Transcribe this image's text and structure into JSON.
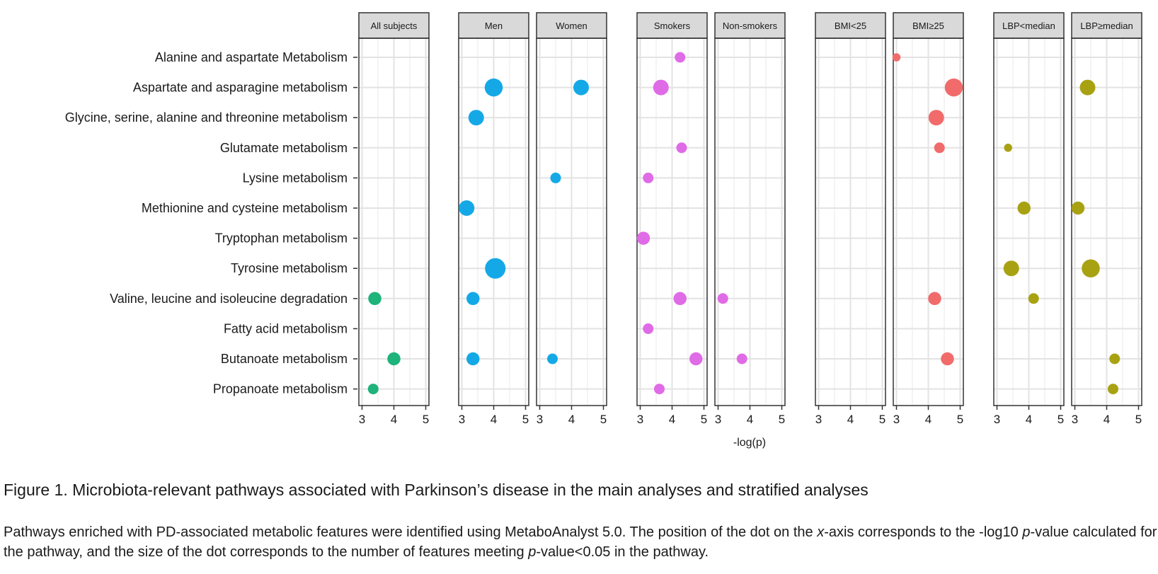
{
  "chart_data": {
    "type": "scatter",
    "xlabel": "-log(p)",
    "xlim": [
      2.9,
      5.1
    ],
    "x_ticks": [
      "3",
      "4",
      "5"
    ],
    "grid": true,
    "size_encoding": "number of features meeting p-value<0.05 in the pathway",
    "categories": [
      "Alanine and aspartate Metabolism",
      "Aspartate and asparagine metabolism",
      "Glycine, serine, alanine and threonine metabolism",
      "Glutamate metabolism",
      "Lysine metabolism",
      "Methionine and cysteine metabolism",
      "Tryptophan metabolism",
      "Tyrosine metabolism",
      "Valine, leucine and isoleucine degradation",
      "Fatty acid metabolism",
      "Butanoate metabolism",
      "Propanoate metabolism"
    ],
    "panels": [
      {
        "label": "All subjects",
        "color": "#1db37a",
        "points": [
          {
            "category": "Valine, leucine and isoleucine degradation",
            "x": 3.4,
            "size": 3
          },
          {
            "category": "Butanoate metabolism",
            "x": 4.0,
            "size": 3
          },
          {
            "category": "Propanoate metabolism",
            "x": 3.35,
            "size": 2
          }
        ]
      },
      {
        "label": "Men",
        "color": "#14a9e6",
        "points": [
          {
            "category": "Aspartate and asparagine metabolism",
            "x": 4.0,
            "size": 5
          },
          {
            "category": "Glycine, serine, alanine and threonine metabolism",
            "x": 3.45,
            "size": 4
          },
          {
            "category": "Methionine and cysteine metabolism",
            "x": 3.15,
            "size": 4
          },
          {
            "category": "Tyrosine metabolism",
            "x": 4.05,
            "size": 6
          },
          {
            "category": "Valine, leucine and isoleucine degradation",
            "x": 3.35,
            "size": 3
          },
          {
            "category": "Butanoate metabolism",
            "x": 3.35,
            "size": 3
          }
        ]
      },
      {
        "label": "Women",
        "color": "#14a9e6",
        "points": [
          {
            "category": "Aspartate and asparagine metabolism",
            "x": 4.3,
            "size": 4
          },
          {
            "category": "Lysine metabolism",
            "x": 3.5,
            "size": 2
          },
          {
            "category": "Butanoate metabolism",
            "x": 3.4,
            "size": 2
          }
        ]
      },
      {
        "label": "Smokers",
        "color": "#e06be6",
        "points": [
          {
            "category": "Alanine and aspartate Metabolism",
            "x": 4.25,
            "size": 2
          },
          {
            "category": "Aspartate and asparagine metabolism",
            "x": 3.65,
            "size": 4
          },
          {
            "category": "Glutamate metabolism",
            "x": 4.3,
            "size": 2
          },
          {
            "category": "Lysine metabolism",
            "x": 3.25,
            "size": 2
          },
          {
            "category": "Tryptophan metabolism",
            "x": 3.1,
            "size": 3
          },
          {
            "category": "Valine, leucine and isoleucine degradation",
            "x": 4.25,
            "size": 3
          },
          {
            "category": "Fatty acid metabolism",
            "x": 3.25,
            "size": 2
          },
          {
            "category": "Butanoate metabolism",
            "x": 4.75,
            "size": 3
          },
          {
            "category": "Propanoate metabolism",
            "x": 3.6,
            "size": 2
          }
        ]
      },
      {
        "label": "Non-smokers",
        "color": "#e06be6",
        "points": [
          {
            "category": "Valine, leucine and isoleucine degradation",
            "x": 3.15,
            "size": 2
          },
          {
            "category": "Butanoate metabolism",
            "x": 3.75,
            "size": 2
          }
        ]
      },
      {
        "label": "BMI<25",
        "color": "#f26b6b",
        "points": []
      },
      {
        "label": "BMI≥25",
        "color": "#f26b6b",
        "points": [
          {
            "category": "Alanine and aspartate Metabolism",
            "x": 3.0,
            "size": 1
          },
          {
            "category": "Aspartate and asparagine metabolism",
            "x": 4.8,
            "size": 5
          },
          {
            "category": "Glycine, serine, alanine and threonine metabolism",
            "x": 4.25,
            "size": 4
          },
          {
            "category": "Glutamate metabolism",
            "x": 4.35,
            "size": 2
          },
          {
            "category": "Valine, leucine and isoleucine degradation",
            "x": 4.2,
            "size": 3
          },
          {
            "category": "Butanoate metabolism",
            "x": 4.6,
            "size": 3
          }
        ]
      },
      {
        "label": "LBP<median",
        "color": "#a8a213",
        "points": [
          {
            "category": "Glutamate metabolism",
            "x": 3.35,
            "size": 1
          },
          {
            "category": "Methionine and cysteine metabolism",
            "x": 3.85,
            "size": 3
          },
          {
            "category": "Tyrosine metabolism",
            "x": 3.45,
            "size": 4
          },
          {
            "category": "Valine, leucine and isoleucine degradation",
            "x": 4.15,
            "size": 2
          }
        ]
      },
      {
        "label": "LBP≥median",
        "color": "#a8a213",
        "points": [
          {
            "category": "Aspartate and asparagine metabolism",
            "x": 3.4,
            "size": 4
          },
          {
            "category": "Methionine and cysteine metabolism",
            "x": 3.1,
            "size": 3
          },
          {
            "category": "Tyrosine metabolism",
            "x": 3.5,
            "size": 5
          },
          {
            "category": "Butanoate metabolism",
            "x": 4.25,
            "size": 2
          },
          {
            "category": "Propanoate metabolism",
            "x": 4.2,
            "size": 2
          }
        ]
      }
    ]
  },
  "caption": {
    "title": "Figure 1. Microbiota-relevant pathways associated with Parkinson’s disease in the main analyses and stratified analyses",
    "body": [
      {
        "text": "Pathways enriched with PD-associated metabolic features were identified using MetaboAnalyst 5.0. The position of the dot on the ",
        "italic": false
      },
      {
        "text": "x",
        "italic": true
      },
      {
        "text": "-axis corresponds to the -log10 ",
        "italic": false
      },
      {
        "text": "p",
        "italic": true
      },
      {
        "text": "-value calculated for the pathway, and the size of the dot corresponds to the number of features meeting ",
        "italic": false
      },
      {
        "text": "p",
        "italic": true
      },
      {
        "text": "-value<0.05 in the pathway.",
        "italic": false
      }
    ]
  }
}
